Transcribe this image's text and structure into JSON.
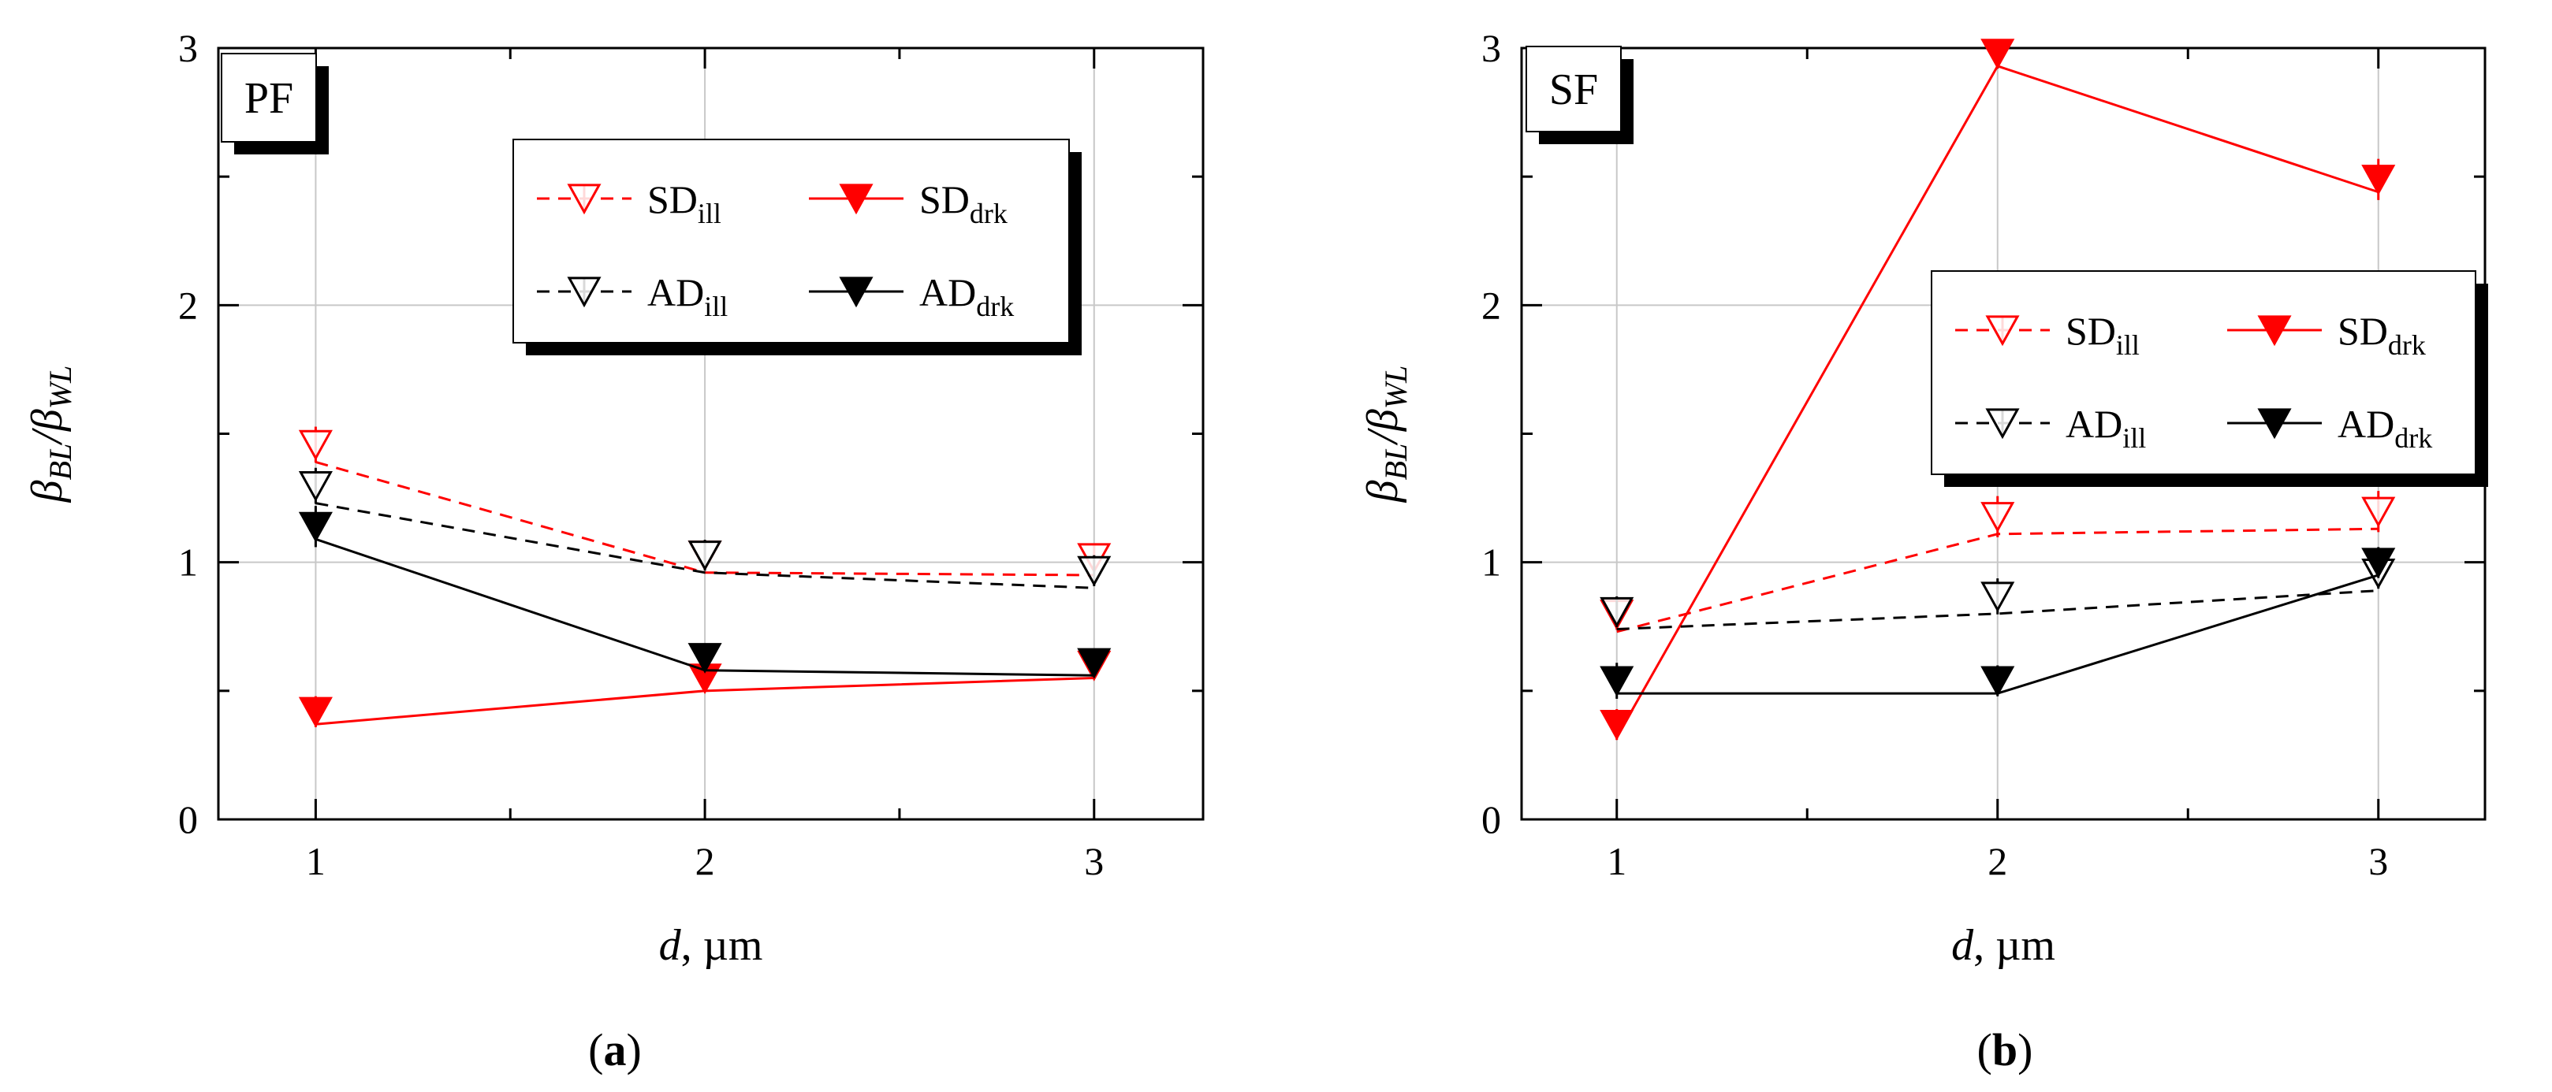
{
  "chart_data": [
    {
      "type": "line",
      "panel_label": "PF",
      "caption": "(a)",
      "xlabel": "d, µm",
      "ylabel": "βBL/βWL",
      "xlim": [
        0.75,
        3.28
      ],
      "ylim": [
        0,
        3
      ],
      "x_ticks": [
        "1",
        "2",
        "3"
      ],
      "y_ticks": [
        "0",
        "1",
        "2",
        "3"
      ],
      "grid": true,
      "legend_position": "top-right",
      "series": [
        {
          "name": "SDill",
          "base": "SD",
          "sub": "ill",
          "color": "#ff0000",
          "dashed": true,
          "filled": false,
          "x": [
            1,
            2,
            3
          ],
          "y": [
            1.39,
            0.96,
            0.95
          ],
          "err": [
            0.07,
            0.05,
            0.05
          ]
        },
        {
          "name": "SDdrk",
          "base": "SD",
          "sub": "drk",
          "color": "#ff0000",
          "dashed": false,
          "filled": true,
          "x": [
            1,
            2,
            3
          ],
          "y": [
            0.37,
            0.5,
            0.55
          ],
          "err": [
            0.06,
            0.05,
            0.05
          ]
        },
        {
          "name": "ADill",
          "base": "AD",
          "sub": "ill",
          "color": "#000000",
          "dashed": true,
          "filled": false,
          "x": [
            1,
            2,
            3
          ],
          "y": [
            1.23,
            0.96,
            0.9
          ],
          "err": [
            0.07,
            0.06,
            0.06
          ]
        },
        {
          "name": "ADdrk",
          "base": "AD",
          "sub": "drk",
          "color": "#000000",
          "dashed": false,
          "filled": true,
          "x": [
            1,
            2,
            3
          ],
          "y": [
            1.09,
            0.58,
            0.56
          ],
          "err": [
            0.08,
            0.05,
            0.05
          ]
        }
      ]
    },
    {
      "type": "line",
      "panel_label": "SF",
      "caption": "(b)",
      "xlabel": "d, µm",
      "ylabel": "βBL/βWL",
      "xlim": [
        0.75,
        3.28
      ],
      "ylim": [
        0,
        3
      ],
      "x_ticks": [
        "1",
        "2",
        "3"
      ],
      "y_ticks": [
        "0",
        "1",
        "2",
        "3"
      ],
      "grid": true,
      "legend_position": "right",
      "series": [
        {
          "name": "SDill",
          "base": "SD",
          "sub": "ill",
          "color": "#ff0000",
          "dashed": true,
          "filled": false,
          "x": [
            1,
            2,
            3
          ],
          "y": [
            0.73,
            1.11,
            1.13
          ],
          "err": [
            0.06,
            0.08,
            0.08
          ]
        },
        {
          "name": "SDdrk",
          "base": "SD",
          "sub": "drk",
          "color": "#ff0000",
          "dashed": false,
          "filled": true,
          "x": [
            1,
            2,
            3
          ],
          "y": [
            0.32,
            2.93,
            2.44
          ],
          "err": [
            0.06,
            0.05,
            0.08
          ]
        },
        {
          "name": "ADill",
          "base": "AD",
          "sub": "ill",
          "color": "#000000",
          "dashed": true,
          "filled": false,
          "x": [
            1,
            2,
            3
          ],
          "y": [
            0.74,
            0.8,
            0.89
          ],
          "err": [
            0.06,
            0.07,
            0.06
          ]
        },
        {
          "name": "ADdrk",
          "base": "AD",
          "sub": "drk",
          "color": "#000000",
          "dashed": false,
          "filled": true,
          "x": [
            1,
            2,
            3
          ],
          "y": [
            0.49,
            0.49,
            0.95
          ],
          "err": [
            0.07,
            0.06,
            0.06
          ]
        }
      ]
    }
  ]
}
